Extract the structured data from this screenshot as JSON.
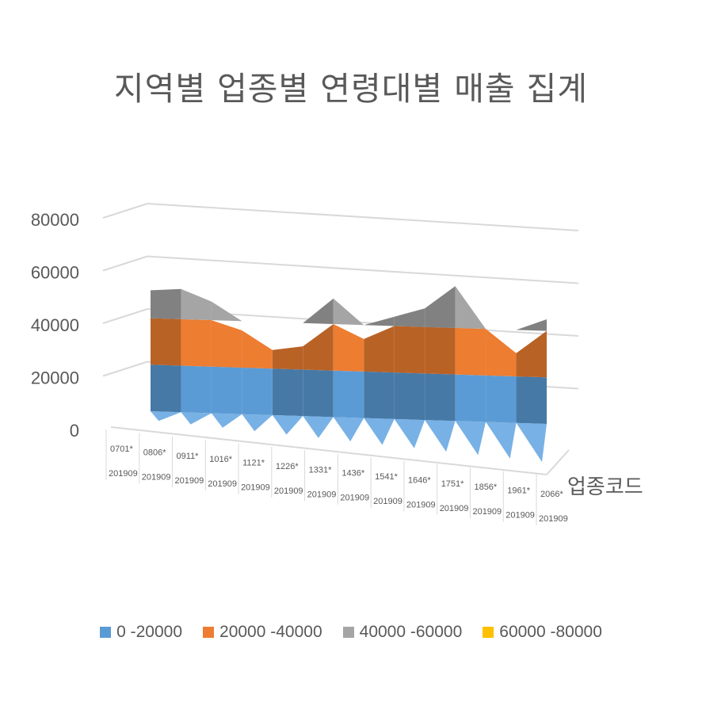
{
  "chart_data": {
    "type": "surface",
    "title": "지역별 업종별 연령대별 매출 집계",
    "xlabel": "업종코드",
    "ylim": [
      0,
      80000
    ],
    "y_ticks": [
      "80000",
      "60000",
      "40000",
      "20000",
      "0"
    ],
    "categories": [
      {
        "code": "0701*",
        "period": "201909"
      },
      {
        "code": "0806*",
        "period": "201909"
      },
      {
        "code": "0911*",
        "period": "201909"
      },
      {
        "code": "1016*",
        "period": "201909"
      },
      {
        "code": "1121*",
        "period": "201909"
      },
      {
        "code": "1226*",
        "period": "201909"
      },
      {
        "code": "1331*",
        "period": "201909"
      },
      {
        "code": "1436*",
        "period": "201909"
      },
      {
        "code": "1541*",
        "period": "201909"
      },
      {
        "code": "1646*",
        "period": "201909"
      },
      {
        "code": "1751*",
        "period": "201909"
      },
      {
        "code": "1856*",
        "period": "201909"
      },
      {
        "code": "1961*",
        "period": "201909"
      },
      {
        "code": "2066*",
        "period": "201909"
      }
    ],
    "back_profile": [
      52000,
      53000,
      48000,
      36000,
      28000,
      30000,
      51000,
      34000,
      44000,
      48000,
      58000,
      40000,
      30000,
      45000
    ],
    "front_profile": [
      0,
      0,
      0,
      0,
      0,
      0,
      0,
      0,
      0,
      0,
      0,
      0,
      0,
      0
    ],
    "bands": [
      {
        "name": "0 -20000",
        "min": 0,
        "max": 20000,
        "color": "#5B9BD5"
      },
      {
        "name": "20000 -40000",
        "min": 20000,
        "max": 40000,
        "color": "#ED7D31"
      },
      {
        "name": "40000 -60000",
        "min": 40000,
        "max": 60000,
        "color": "#A5A5A5"
      },
      {
        "name": "60000 -80000",
        "min": 60000,
        "max": 80000,
        "color": "#FFC000"
      }
    ],
    "legend_position": "bottom",
    "grid": true
  }
}
